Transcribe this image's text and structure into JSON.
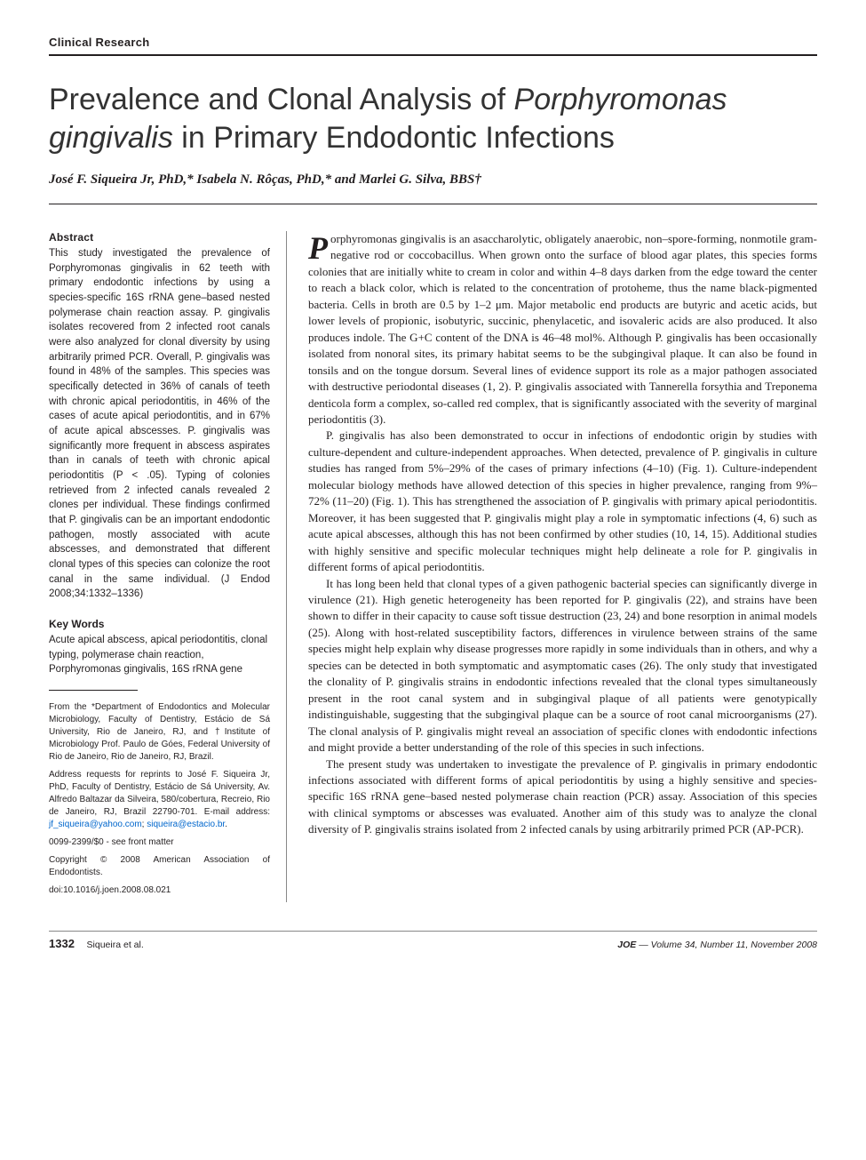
{
  "section_label": "Clinical Research",
  "title_pre": "Prevalence and Clonal Analysis of ",
  "title_italic": "Porphyromonas gingivalis",
  "title_post": " in Primary Endodontic Infections",
  "authors_html": "José F. Siqueira Jr, PhD,* Isabela N. Rôças, PhD,* and Marlei G. Silva, BBS†",
  "abstract_heading": "Abstract",
  "abstract_body": "This study investigated the prevalence of Porphyromonas gingivalis in 62 teeth with primary endodontic infections by using a species-specific 16S rRNA gene–based nested polymerase chain reaction assay. P. gingivalis isolates recovered from 2 infected root canals were also analyzed for clonal diversity by using arbitrarily primed PCR. Overall, P. gingivalis was found in 48% of the samples. This species was specifically detected in 36% of canals of teeth with chronic apical periodontitis, in 46% of the cases of acute apical periodontitis, and in 67% of acute apical abscesses. P. gingivalis was significantly more frequent in abscess aspirates than in canals of teeth with chronic apical periodontitis (P < .05). Typing of colonies retrieved from 2 infected canals revealed 2 clones per individual. These findings confirmed that P. gingivalis can be an important endodontic pathogen, mostly associated with acute abscesses, and demonstrated that different clonal types of this species can colonize the root canal in the same individual. (J Endod 2008;34:1332–1336)",
  "keywords_heading": "Key Words",
  "keywords_body": "Acute apical abscess, apical periodontitis, clonal typing, polymerase chain reaction, Porphyromonas gingivalis, 16S rRNA gene",
  "affiliation_1": "From the *Department of Endodontics and Molecular Microbiology, Faculty of Dentistry, Estácio de Sá University, Rio de Janeiro, RJ, and †Institute of Microbiology Prof. Paulo de Góes, Federal University of Rio de Janeiro, Rio de Janeiro, RJ, Brazil.",
  "affiliation_2_pre": "Address requests for reprints to José F. Siqueira Jr, PhD, Faculty of Dentistry, Estácio de Sá University, Av. Alfredo Baltazar da Silveira, 580/cobertura, Recreio, Rio de Janeiro, RJ, Brazil 22790-701. E-mail address: ",
  "email_1": "jf_siqueira@yahoo.com",
  "affiliation_2_sep": "; ",
  "email_2": "siqueira@estacio.br",
  "affiliation_2_post": ".",
  "affiliation_3": "0099-2399/$0 - see front matter",
  "affiliation_4": "Copyright © 2008 American Association of Endodontists.",
  "affiliation_5": "doi:10.1016/j.joen.2008.08.021",
  "para1_drop": "P",
  "para1": "orphyromonas gingivalis is an asaccharolytic, obligately anaerobic, non–spore-forming, nonmotile gram-negative rod or coccobacillus. When grown onto the surface of blood agar plates, this species forms colonies that are initially white to cream in color and within 4–8 days darken from the edge toward the center to reach a black color, which is related to the concentration of protoheme, thus the name black-pigmented bacteria. Cells in broth are 0.5 by 1–2 μm. Major metabolic end products are butyric and acetic acids, but lower levels of propionic, isobutyric, succinic, phenylacetic, and isovaleric acids are also produced. It also produces indole. The G+C content of the DNA is 46–48 mol%. Although P. gingivalis has been occasionally isolated from nonoral sites, its primary habitat seems to be the subgingival plaque. It can also be found in tonsils and on the tongue dorsum. Several lines of evidence support its role as a major pathogen associated with destructive periodontal diseases (1, 2). P. gingivalis associated with Tannerella forsythia and Treponema denticola form a complex, so-called red complex, that is significantly associated with the severity of marginal periodontitis (3).",
  "para2": "P. gingivalis has also been demonstrated to occur in infections of endodontic origin by studies with culture-dependent and culture-independent approaches. When detected, prevalence of P. gingivalis in culture studies has ranged from 5%–29% of the cases of primary infections (4–10) (Fig. 1). Culture-independent molecular biology methods have allowed detection of this species in higher prevalence, ranging from 9%–72% (11–20) (Fig. 1). This has strengthened the association of P. gingivalis with primary apical periodontitis. Moreover, it has been suggested that P. gingivalis might play a role in symptomatic infections (4, 6) such as acute apical abscesses, although this has not been confirmed by other studies (10, 14, 15). Additional studies with highly sensitive and specific molecular techniques might help delineate a role for P. gingivalis in different forms of apical periodontitis.",
  "para3": "It has long been held that clonal types of a given pathogenic bacterial species can significantly diverge in virulence (21). High genetic heterogeneity has been reported for P. gingivalis (22), and strains have been shown to differ in their capacity to cause soft tissue destruction (23, 24) and bone resorption in animal models (25). Along with host-related susceptibility factors, differences in virulence between strains of the same species might help explain why disease progresses more rapidly in some individuals than in others, and why a species can be detected in both symptomatic and asymptomatic cases (26). The only study that investigated the clonality of P. gingivalis strains in endodontic infections revealed that the clonal types simultaneously present in the root canal system and in subgingival plaque of all patients were genotypically indistinguishable, suggesting that the subgingival plaque can be a source of root canal microorganisms (27). The clonal analysis of P. gingivalis might reveal an association of specific clones with endodontic infections and might provide a better understanding of the role of this species in such infections.",
  "para4": "The present study was undertaken to investigate the prevalence of P. gingivalis in primary endodontic infections associated with different forms of apical periodontitis by using a highly sensitive and species-specific 16S rRNA gene–based nested polymerase chain reaction (PCR) assay. Association of this species with clinical symptoms or abscesses was evaluated. Another aim of this study was to analyze the clonal diversity of P. gingivalis strains isolated from 2 infected canals by using arbitrarily primed PCR (AP-PCR).",
  "footer": {
    "page": "1332",
    "authors": "Siqueira et al.",
    "journal": "JOE",
    "issue": " — Volume 34, Number 11, November 2008"
  },
  "colors": {
    "text": "#231f20",
    "link": "#0066cc",
    "rule": "#888888",
    "background": "#ffffff"
  },
  "fonts": {
    "title_size_pt": 34,
    "body_size_pt": 13,
    "abstract_size_pt": 11.5,
    "affil_size_pt": 10
  }
}
